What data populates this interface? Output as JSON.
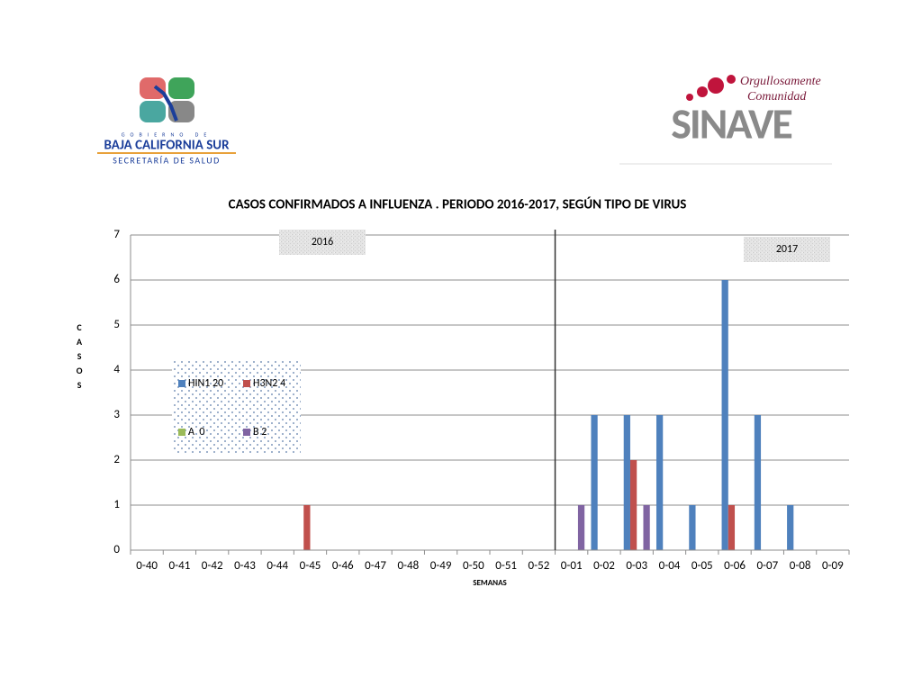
{
  "header": {
    "left_logo": {
      "line1": "GOBIERNO DE",
      "line2": "BAJA CALIFORNIA SUR",
      "line3": "SECRETARÍA DE SALUD"
    },
    "right_logo": {
      "line1": "Orgullosamente",
      "line2": "Comunidad",
      "brand": "SINAVE"
    }
  },
  "chart_data": {
    "type": "bar",
    "title": "CASOS CONFIRMADOS A INFLUENZA . PERIODO 2016-2017, SEGÚN TIPO DE VIRUS",
    "y_label": "CASOS",
    "x_label": "SEMANAS",
    "annotations": [
      "2016",
      "2017"
    ],
    "categories": [
      "0-40",
      "0-41",
      "0-42",
      "0-43",
      "0-44",
      "0-45",
      "0-46",
      "0-47",
      "0-48",
      "0-49",
      "0-50",
      "0-51",
      "0-52",
      "0-01",
      "0-02",
      "0-03",
      "0-04",
      "0-05",
      "0-06",
      "0-07",
      "0-08",
      "0-09"
    ],
    "series": [
      {
        "name": "HIN1 20",
        "color": "#4f81bd",
        "values": [
          0,
          0,
          0,
          0,
          0,
          0,
          0,
          0,
          0,
          0,
          0,
          0,
          0,
          0,
          3,
          3,
          3,
          1,
          6,
          3,
          1,
          0
        ]
      },
      {
        "name": "H3N2 4",
        "color": "#c0504d",
        "values": [
          0,
          0,
          0,
          0,
          0,
          1,
          0,
          0,
          0,
          0,
          0,
          0,
          0,
          0,
          0,
          2,
          0,
          0,
          1,
          0,
          0,
          0
        ]
      },
      {
        "name": "A  0",
        "color": "#9bbb59",
        "values": [
          0,
          0,
          0,
          0,
          0,
          0,
          0,
          0,
          0,
          0,
          0,
          0,
          0,
          0,
          0,
          0,
          0,
          0,
          0,
          0,
          0,
          0
        ]
      },
      {
        "name": "B 2",
        "color": "#8064a2",
        "values": [
          0,
          0,
          0,
          0,
          0,
          0,
          0,
          0,
          0,
          0,
          0,
          0,
          0,
          1,
          0,
          1,
          0,
          0,
          0,
          0,
          0,
          0
        ]
      }
    ],
    "ylim": [
      0,
      7
    ],
    "yticks": [
      0,
      1,
      2,
      3,
      4,
      5,
      6,
      7
    ],
    "grid": true
  }
}
